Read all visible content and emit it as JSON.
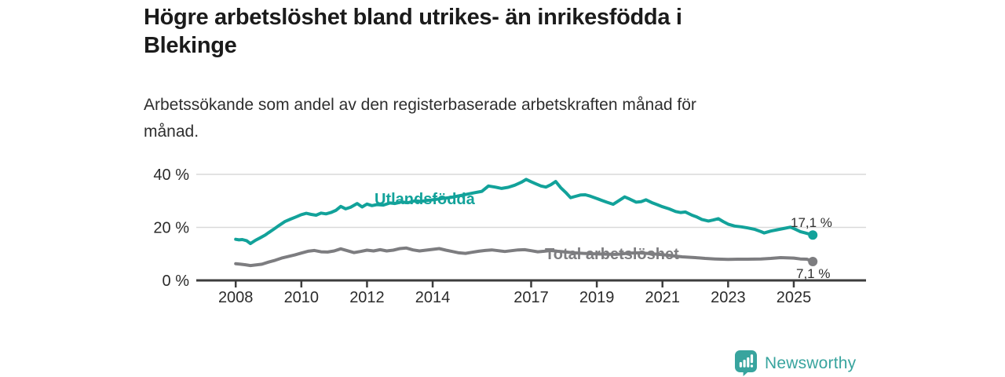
{
  "header": {
    "title_lines": [
      "Högre arbetslöshet bland utrikes- än inrikesfödda i",
      "Blekinge"
    ],
    "subtitle_lines": [
      "Arbetssökande som andel av den registerbaserade arbetskraften månad för",
      "månad."
    ]
  },
  "branding": {
    "name": "Newsworthy",
    "icon": "newsworthy-chart-bubble-icon",
    "color": "#38a49e"
  },
  "chart_data": {
    "type": "line",
    "x_ticks": [
      2008,
      2010,
      2012,
      2014,
      2017,
      2019,
      2021,
      2023,
      2025
    ],
    "y_ticks": [
      {
        "value": 0,
        "label": "0 %"
      },
      {
        "value": 20,
        "label": "20 %"
      },
      {
        "value": 40,
        "label": "40 %"
      }
    ],
    "xlim": [
      2006.8,
      2027.2
    ],
    "ylim": [
      0,
      44
    ],
    "grid": "horizontal",
    "legend": "inline-labels",
    "series": [
      {
        "name": "Utlandsfödda",
        "color": "#12a29a",
        "end_label": "17,1 %",
        "end_value": 17.1,
        "points": [
          [
            2008.0,
            15.5
          ],
          [
            2008.1,
            15.3
          ],
          [
            2008.2,
            15.4
          ],
          [
            2008.33,
            15.0
          ],
          [
            2008.45,
            13.9
          ],
          [
            2008.6,
            15.1
          ],
          [
            2008.75,
            16.1
          ],
          [
            2008.9,
            17.1
          ],
          [
            2009.0,
            18.0
          ],
          [
            2009.17,
            19.4
          ],
          [
            2009.33,
            20.8
          ],
          [
            2009.5,
            22.2
          ],
          [
            2009.67,
            23.1
          ],
          [
            2009.83,
            23.9
          ],
          [
            2010.0,
            24.8
          ],
          [
            2010.15,
            25.3
          ],
          [
            2010.3,
            24.9
          ],
          [
            2010.45,
            24.6
          ],
          [
            2010.6,
            25.4
          ],
          [
            2010.75,
            25.1
          ],
          [
            2010.9,
            25.6
          ],
          [
            2011.05,
            26.4
          ],
          [
            2011.2,
            27.9
          ],
          [
            2011.35,
            27.0
          ],
          [
            2011.5,
            27.6
          ],
          [
            2011.7,
            29.0
          ],
          [
            2011.85,
            27.7
          ],
          [
            2012.0,
            28.8
          ],
          [
            2012.15,
            28.2
          ],
          [
            2012.3,
            28.6
          ],
          [
            2012.5,
            28.4
          ],
          [
            2012.7,
            29.2
          ],
          [
            2012.85,
            29.0
          ],
          [
            2013.05,
            29.6
          ],
          [
            2013.25,
            29.3
          ],
          [
            2013.45,
            30.0
          ],
          [
            2013.65,
            29.8
          ],
          [
            2013.85,
            30.2
          ],
          [
            2014.05,
            30.5
          ],
          [
            2014.3,
            30.9
          ],
          [
            2014.55,
            31.3
          ],
          [
            2014.8,
            31.9
          ],
          [
            2015.0,
            32.4
          ],
          [
            2015.25,
            33.0
          ],
          [
            2015.5,
            33.6
          ],
          [
            2015.7,
            35.6
          ],
          [
            2015.9,
            35.2
          ],
          [
            2016.1,
            34.7
          ],
          [
            2016.3,
            35.1
          ],
          [
            2016.5,
            35.9
          ],
          [
            2016.7,
            37.0
          ],
          [
            2016.85,
            38.1
          ],
          [
            2017.0,
            37.2
          ],
          [
            2017.15,
            36.4
          ],
          [
            2017.3,
            35.6
          ],
          [
            2017.45,
            35.2
          ],
          [
            2017.6,
            36.1
          ],
          [
            2017.75,
            37.3
          ],
          [
            2017.9,
            35.0
          ],
          [
            2018.05,
            33.2
          ],
          [
            2018.2,
            31.2
          ],
          [
            2018.35,
            31.7
          ],
          [
            2018.5,
            32.2
          ],
          [
            2018.65,
            32.3
          ],
          [
            2018.8,
            31.8
          ],
          [
            2019.0,
            30.9
          ],
          [
            2019.15,
            30.2
          ],
          [
            2019.3,
            29.5
          ],
          [
            2019.5,
            28.7
          ],
          [
            2019.7,
            30.3
          ],
          [
            2019.85,
            31.5
          ],
          [
            2020.0,
            30.7
          ],
          [
            2020.2,
            29.5
          ],
          [
            2020.35,
            29.7
          ],
          [
            2020.5,
            30.4
          ],
          [
            2020.7,
            29.2
          ],
          [
            2020.85,
            28.5
          ],
          [
            2021.0,
            27.8
          ],
          [
            2021.2,
            27.0
          ],
          [
            2021.4,
            26.0
          ],
          [
            2021.55,
            25.6
          ],
          [
            2021.7,
            25.8
          ],
          [
            2021.9,
            24.6
          ],
          [
            2022.05,
            23.9
          ],
          [
            2022.2,
            23.0
          ],
          [
            2022.4,
            22.4
          ],
          [
            2022.55,
            22.8
          ],
          [
            2022.7,
            23.3
          ],
          [
            2022.85,
            22.2
          ],
          [
            2023.0,
            21.2
          ],
          [
            2023.2,
            20.5
          ],
          [
            2023.4,
            20.2
          ],
          [
            2023.6,
            19.8
          ],
          [
            2023.8,
            19.3
          ],
          [
            2024.0,
            18.4
          ],
          [
            2024.1,
            17.9
          ],
          [
            2024.3,
            18.6
          ],
          [
            2024.5,
            19.1
          ],
          [
            2024.7,
            19.6
          ],
          [
            2024.9,
            20.1
          ],
          [
            2025.05,
            19.3
          ],
          [
            2025.2,
            18.4
          ],
          [
            2025.35,
            17.9
          ],
          [
            2025.58,
            17.1
          ]
        ]
      },
      {
        "name": "Total arbetslöshet",
        "color": "#7d7d80",
        "end_label": "7,1 %",
        "end_value": 7.1,
        "points": [
          [
            2008.0,
            6.3
          ],
          [
            2008.15,
            6.1
          ],
          [
            2008.3,
            5.9
          ],
          [
            2008.45,
            5.6
          ],
          [
            2008.6,
            5.8
          ],
          [
            2008.8,
            6.1
          ],
          [
            2009.0,
            6.9
          ],
          [
            2009.2,
            7.6
          ],
          [
            2009.4,
            8.4
          ],
          [
            2009.6,
            9.0
          ],
          [
            2009.8,
            9.6
          ],
          [
            2010.0,
            10.3
          ],
          [
            2010.2,
            11.0
          ],
          [
            2010.4,
            11.3
          ],
          [
            2010.6,
            10.8
          ],
          [
            2010.8,
            10.7
          ],
          [
            2011.0,
            11.1
          ],
          [
            2011.2,
            11.9
          ],
          [
            2011.4,
            11.2
          ],
          [
            2011.6,
            10.5
          ],
          [
            2011.8,
            10.9
          ],
          [
            2012.0,
            11.4
          ],
          [
            2012.2,
            11.1
          ],
          [
            2012.4,
            11.6
          ],
          [
            2012.6,
            11.1
          ],
          [
            2012.8,
            11.4
          ],
          [
            2013.0,
            12.0
          ],
          [
            2013.2,
            12.2
          ],
          [
            2013.4,
            11.5
          ],
          [
            2013.6,
            11.1
          ],
          [
            2013.8,
            11.4
          ],
          [
            2014.0,
            11.7
          ],
          [
            2014.2,
            12.0
          ],
          [
            2014.4,
            11.4
          ],
          [
            2014.6,
            10.9
          ],
          [
            2014.8,
            10.4
          ],
          [
            2015.0,
            10.2
          ],
          [
            2015.2,
            10.6
          ],
          [
            2015.4,
            11.0
          ],
          [
            2015.6,
            11.3
          ],
          [
            2015.8,
            11.5
          ],
          [
            2016.0,
            11.2
          ],
          [
            2016.2,
            10.9
          ],
          [
            2016.4,
            11.2
          ],
          [
            2016.6,
            11.5
          ],
          [
            2016.8,
            11.6
          ],
          [
            2017.0,
            11.2
          ],
          [
            2017.2,
            10.8
          ],
          [
            2017.4,
            11.0
          ],
          [
            2017.6,
            11.3
          ],
          [
            2017.8,
            11.0
          ],
          [
            2018.0,
            10.8
          ],
          [
            2018.3,
            10.4
          ],
          [
            2018.6,
            10.2
          ],
          [
            2019.0,
            10.0
          ],
          [
            2019.3,
            9.9
          ],
          [
            2019.6,
            9.8
          ],
          [
            2020.0,
            10.3
          ],
          [
            2020.3,
            10.4
          ],
          [
            2020.6,
            10.1
          ],
          [
            2021.0,
            9.7
          ],
          [
            2021.3,
            9.3
          ],
          [
            2021.6,
            8.9
          ],
          [
            2022.0,
            8.6
          ],
          [
            2022.3,
            8.3
          ],
          [
            2022.6,
            8.1
          ],
          [
            2023.0,
            7.9
          ],
          [
            2023.3,
            8.0
          ],
          [
            2023.6,
            8.0
          ],
          [
            2024.0,
            8.1
          ],
          [
            2024.3,
            8.3
          ],
          [
            2024.6,
            8.6
          ],
          [
            2025.0,
            8.4
          ],
          [
            2025.2,
            8.1
          ],
          [
            2025.4,
            8.0
          ],
          [
            2025.58,
            7.1
          ]
        ]
      }
    ]
  }
}
